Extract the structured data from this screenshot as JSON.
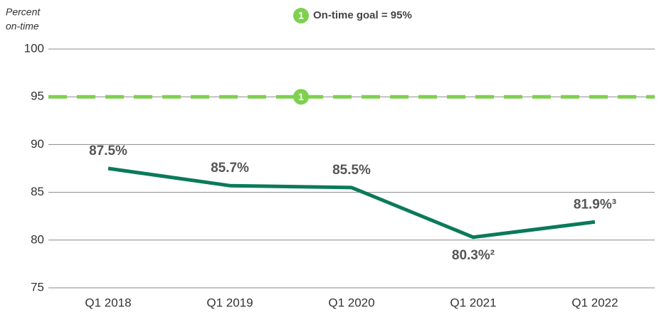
{
  "chart_data": {
    "type": "line",
    "ylabel": [
      "Percent",
      "on-time"
    ],
    "categories": [
      "Q1 2018",
      "Q1 2019",
      "Q1 2020",
      "Q1 2021",
      "Q1 2022"
    ],
    "series": [
      {
        "name": "On-time",
        "color": "#0b7a5a",
        "values": [
          87.5,
          85.7,
          85.5,
          80.3,
          81.9
        ],
        "value_labels": [
          "87.5%",
          "85.7%",
          "85.5%",
          "80.3%²",
          "81.9%³"
        ]
      }
    ],
    "goal": {
      "value": 95,
      "label": "On-time goal = 95%",
      "marker": "1",
      "color": "#7ed04e"
    },
    "ylim": [
      75,
      100
    ],
    "yticks": [
      75,
      80,
      85,
      90,
      95,
      100
    ],
    "grid": true
  }
}
